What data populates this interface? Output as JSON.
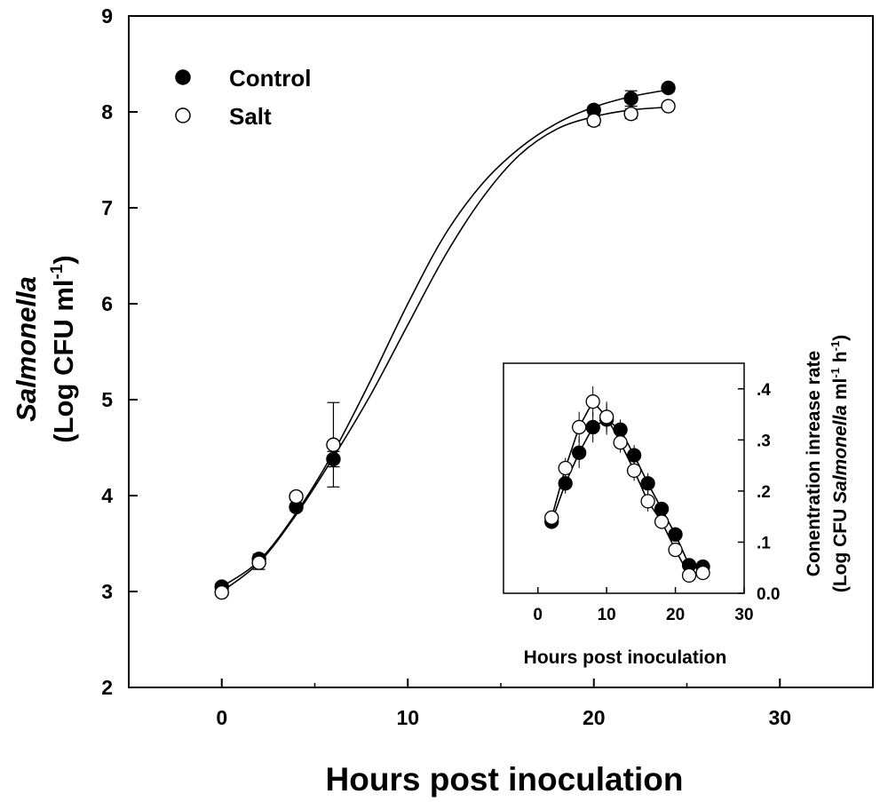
{
  "chart_data": [
    {
      "type": "scatter",
      "role": "main",
      "title": "",
      "xlabel": "Hours post inoculation",
      "ylabel_line1": "Salmonella",
      "ylabel_line2_prefix": "(Log CFU ml",
      "ylabel_sup": "-1",
      "ylabel_suffix": ")",
      "xlim": [
        -5,
        35
      ],
      "ylim": [
        2,
        9
      ],
      "xticks": [
        0,
        10,
        20,
        30
      ],
      "yticks": [
        2,
        3,
        4,
        5,
        6,
        7,
        8,
        9
      ],
      "xtick_labels": [
        "0",
        "10",
        "20",
        "30"
      ],
      "ytick_labels": [
        "2",
        "3",
        "4",
        "5",
        "6",
        "7",
        "8",
        "9"
      ],
      "grid": false,
      "legend_position": "top-left",
      "series": [
        {
          "name": "Control",
          "marker": "filled-circle",
          "color": "#000000",
          "x": [
            0,
            2,
            4,
            6,
            20,
            22,
            24
          ],
          "y": [
            3.05,
            3.34,
            3.88,
            4.38,
            8.02,
            8.14,
            8.25
          ],
          "err": [
            0.03,
            0.05,
            0.04,
            0.08,
            0.04,
            0.08,
            0.04
          ],
          "fit": {
            "x": [
              0,
              2,
              4,
              6,
              8,
              10,
              12,
              14,
              16,
              18,
              20,
              22,
              24
            ],
            "y": [
              3.05,
              3.32,
              3.82,
              4.45,
              5.2,
              6.0,
              6.72,
              7.25,
              7.62,
              7.88,
              8.05,
              8.16,
              8.23
            ]
          }
        },
        {
          "name": "Salt",
          "marker": "open-circle",
          "color": "#000000",
          "x": [
            0,
            2,
            4,
            6,
            20,
            22,
            24
          ],
          "y": [
            2.99,
            3.3,
            3.99,
            4.53,
            7.91,
            7.98,
            8.06
          ],
          "err": [
            0.03,
            0.07,
            0.04,
            0.44,
            0.05,
            0.05,
            0.03
          ],
          "fit": {
            "x": [
              0,
              2,
              4,
              6,
              8,
              10,
              12,
              14,
              16,
              18,
              20,
              22,
              24
            ],
            "y": [
              3.0,
              3.3,
              3.8,
              4.4,
              5.05,
              5.78,
              6.5,
              7.1,
              7.55,
              7.82,
              7.95,
              8.02,
              8.05
            ]
          }
        }
      ]
    },
    {
      "type": "line",
      "role": "inset",
      "title": "",
      "xlabel": "Hours post inoculation",
      "ylabel_line1": "Conentration inrease rate",
      "ylabel_line2_a": "(Log CFU ",
      "ylabel_line2_italic": "Salmonella",
      "ylabel_line2_b": " ml",
      "ylabel_sup1": "-1",
      "ylabel_line2_c": " h",
      "ylabel_sup2": "-1",
      "ylabel_line2_d": ")",
      "xlim": [
        -5,
        30
      ],
      "ylim": [
        0,
        0.45
      ],
      "xticks": [
        0,
        10,
        20,
        30
      ],
      "yticks": [
        0,
        0.1,
        0.2,
        0.3,
        0.4
      ],
      "xtick_labels": [
        "0",
        "10",
        "20",
        "30"
      ],
      "ytick_labels": [
        "0.0",
        ".1",
        ".2",
        ".3",
        ".4"
      ],
      "series": [
        {
          "name": "Control",
          "marker": "filled-circle",
          "x": [
            2,
            4,
            6,
            8,
            10,
            12,
            14,
            16,
            18,
            20,
            22,
            24
          ],
          "y": [
            0.14,
            0.215,
            0.275,
            0.325,
            0.34,
            0.32,
            0.27,
            0.215,
            0.165,
            0.115,
            0.055,
            0.052
          ],
          "err": [
            0.01,
            0.02,
            0.03,
            0.03,
            0.03,
            0.02,
            0.02,
            0.02,
            0.01,
            0.01,
            0.01,
            0.01
          ]
        },
        {
          "name": "Salt",
          "marker": "open-circle",
          "x": [
            2,
            4,
            6,
            8,
            10,
            12,
            14,
            16,
            18,
            20,
            22,
            24
          ],
          "y": [
            0.148,
            0.245,
            0.325,
            0.375,
            0.345,
            0.295,
            0.24,
            0.18,
            0.14,
            0.085,
            0.035,
            0.04
          ],
          "err": [
            0.01,
            0.02,
            0.03,
            0.03,
            0.03,
            0.02,
            0.02,
            0.02,
            0.01,
            0.01,
            0.01,
            0.01
          ]
        }
      ]
    }
  ]
}
